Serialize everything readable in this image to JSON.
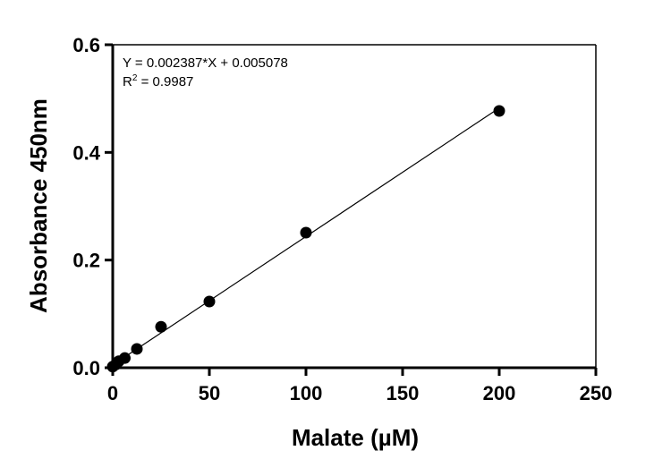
{
  "chart_data": {
    "type": "scatter",
    "xlabel": "Malate (µM)",
    "ylabel": "Absorbance 450nm",
    "xlim": [
      0,
      250
    ],
    "ylim": [
      0,
      0.6
    ],
    "xticks": [
      0,
      50,
      100,
      150,
      200,
      250
    ],
    "yticks": [
      0.0,
      0.2,
      0.4,
      0.6
    ],
    "xtick_labels": [
      "0",
      "50",
      "100",
      "150",
      "200",
      "250"
    ],
    "ytick_labels": [
      "0.0",
      "0.2",
      "0.4",
      "0.6"
    ],
    "grid": false,
    "points": {
      "x": [
        0,
        1.5625,
        3.125,
        6.25,
        12.5,
        25,
        50,
        100,
        200
      ],
      "y": [
        0.002,
        0.006,
        0.012,
        0.018,
        0.035,
        0.076,
        0.123,
        0.251,
        0.477
      ]
    },
    "fit": {
      "slope": 0.002387,
      "intercept": 0.005078,
      "x_range": [
        0,
        200
      ]
    },
    "annotations": {
      "equation": "Y = 0.002387*X + 0.005078",
      "r2_prefix": "R",
      "r2_sup": "2",
      "r2_value": " = 0.9987"
    }
  }
}
